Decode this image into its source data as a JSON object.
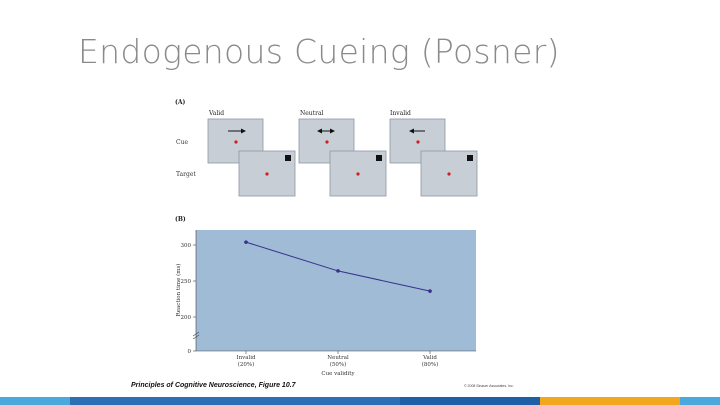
{
  "slide": {
    "title": "Endogenous Cueing (Posner)"
  },
  "figure": {
    "panel_a_label": "(A)",
    "panel_b_label": "(B)",
    "columns": [
      "Valid",
      "Neutral",
      "Invalid"
    ],
    "rows": [
      "Cue",
      "Target"
    ],
    "cue_arrows": [
      "right",
      "both",
      "left"
    ]
  },
  "chart_data": {
    "type": "line",
    "categories": [
      "Invalid (20%)",
      "Neutral (50%)",
      "Valid (80%)"
    ],
    "category_lines": [
      [
        "Invalid",
        "(20%)"
      ],
      [
        "Neutral",
        "(50%)"
      ],
      [
        "Valid",
        "(80%)"
      ]
    ],
    "series": [
      {
        "values": [
          304,
          264,
          236
        ]
      }
    ],
    "xlabel": "Cue validity",
    "ylabel": "Reaction time (ms)",
    "yticks": [
      "300",
      "250",
      "200",
      "0"
    ],
    "ylim": [
      0,
      320
    ],
    "axis_break": true,
    "grid": false,
    "line_color": "#3a2f8a",
    "background_color": "#9fbbd6"
  },
  "footer": {
    "credit": "Principles of Cognitive Neuroscience, Figure 10.7",
    "copyright": "© 2008 Sinauer Associates, Inc."
  },
  "theme": {
    "bar_colors": [
      "#4aa8dc",
      "#2c6fb6",
      "#1f5fa8",
      "#f2a71c",
      "#4aa8dc"
    ]
  }
}
